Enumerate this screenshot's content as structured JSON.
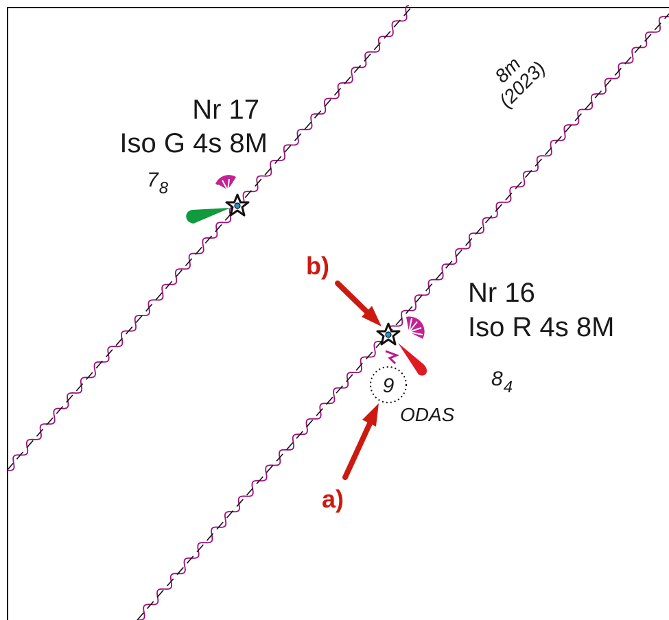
{
  "colors": {
    "frame": "#000000",
    "channel_limit": "#a0107a",
    "leading_line": "#111111",
    "light_green": "#119a3e",
    "light_red": "#e01a22",
    "arrow_red": "#cc1a10",
    "beacon_blue": "#2a8fd0"
  },
  "buoys": {
    "nr17": {
      "name": "Nr 17",
      "light": "Iso G 4s 8M",
      "icon": "lit-beacon-star-icon",
      "light_color": "green"
    },
    "nr16": {
      "name": "Nr 16",
      "light": "Iso R 4s 8M",
      "icon": "lit-beacon-star-icon",
      "light_color": "red"
    }
  },
  "soundings": {
    "s78": {
      "whole": "7",
      "tenths": "8"
    },
    "s84": {
      "whole": "8",
      "tenths": "4"
    },
    "s9": {
      "whole": "9"
    }
  },
  "depth_note": {
    "depth": "8m",
    "year": "(2023)"
  },
  "odas": {
    "label": "ODAS",
    "icon": "odas-buoy-icon"
  },
  "annotations": {
    "a": {
      "label": "a)",
      "icon": "red-arrow-icon"
    },
    "b": {
      "label": "b)",
      "icon": "red-arrow-icon"
    }
  }
}
